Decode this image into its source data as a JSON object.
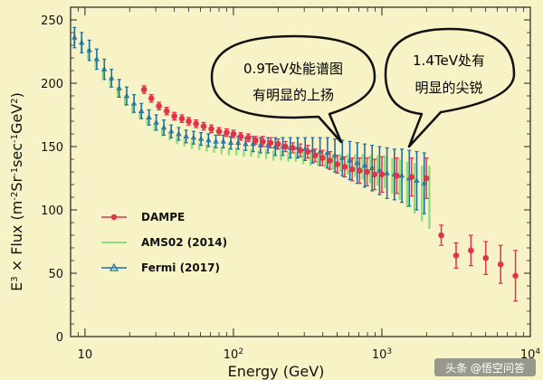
{
  "chart_data": {
    "type": "scatter",
    "xlabel": "Energy (GeV)",
    "ylabel": "E3 × Flux  (m-2Sr-1sec-1GeV2)",
    "ylabel_parts": {
      "prefix": "E",
      "sup1": "3",
      "mid": " × Flux  (m",
      "sup2": "-2",
      "mid2": "Sr",
      "sup3": "-1",
      "mid3": "sec",
      "sup4": "-1",
      "mid4": "GeV",
      "sup5": "2",
      "suffix": ")"
    },
    "xscale": "log",
    "xlim": [
      8,
      10000
    ],
    "ylim": [
      0,
      260
    ],
    "y_ticks": [
      0,
      50,
      100,
      150,
      200,
      250
    ],
    "x_ticks": [
      {
        "value": 10,
        "label": "10",
        "sup": ""
      },
      {
        "value": 100,
        "label": "10",
        "sup": "2"
      },
      {
        "value": 1000,
        "label": "10",
        "sup": "3"
      },
      {
        "value": 10000,
        "label": "10",
        "sup": "4"
      }
    ],
    "legend_position": "left",
    "series": [
      {
        "name": "DAMPE",
        "color": "#e0344a",
        "marker": "circle",
        "x": [
          25,
          28,
          31.5,
          35.5,
          40,
          45,
          50,
          56,
          63,
          71,
          80,
          90,
          100,
          112,
          126,
          141,
          158,
          178,
          200,
          224,
          251,
          282,
          316,
          355,
          398,
          447,
          501,
          562,
          631,
          708,
          794,
          891,
          1000,
          1259,
          1585,
          1995,
          2512,
          3162,
          3981,
          5012,
          6310,
          7943
        ],
        "y": [
          195,
          188,
          182,
          178,
          174,
          172,
          170,
          168,
          166,
          164,
          162,
          161,
          160,
          158,
          157,
          155,
          154,
          153,
          152,
          150,
          149,
          147,
          146,
          143,
          141,
          139,
          136,
          134,
          132,
          131,
          130,
          128,
          128,
          127,
          126,
          125,
          80,
          64,
          68,
          62,
          57,
          48
        ],
        "err": [
          3,
          3,
          3,
          3,
          3,
          3,
          3,
          3,
          3,
          3,
          3,
          3,
          3,
          3,
          3,
          3,
          4,
          4,
          4,
          4,
          4,
          5,
          5,
          5,
          6,
          7,
          7,
          8,
          9,
          10,
          11,
          12,
          14,
          14,
          15,
          16,
          8,
          10,
          12,
          13,
          15,
          20
        ]
      },
      {
        "name": "AMS02 (2014)",
        "color": "#8fe07d",
        "marker": "line",
        "x": [
          8.5,
          9.5,
          10.5,
          11.8,
          13.2,
          14.8,
          16.6,
          18.6,
          20.9,
          23.4,
          26.3,
          29.5,
          33.1,
          37.2,
          41.7,
          46.8,
          52.5,
          58.9,
          66.1,
          74.1,
          83.2,
          93.3,
          104.7,
          117.5,
          131.8,
          147.9,
          166,
          186.2,
          208.9,
          234.4,
          263,
          295.1,
          331.1,
          371.5,
          416.9,
          467.7,
          524.8,
          588.8,
          660.7,
          741.3,
          831.8,
          933.3,
          1047,
          1175,
          1318,
          1479,
          1660,
          1862,
          2089
        ],
        "y": [
          236,
          230,
          223,
          216,
          208,
          200,
          193,
          186,
          180,
          175,
          170,
          165,
          161,
          158,
          155,
          153,
          151,
          150,
          149,
          148,
          147,
          146,
          146,
          145,
          145,
          144,
          144,
          143,
          143,
          142,
          142,
          141,
          140,
          140,
          139,
          138,
          137,
          136,
          135,
          134,
          132,
          131,
          130,
          127,
          124,
          120,
          117,
          113,
          110
        ],
        "err": [
          5,
          5,
          4,
          4,
          4,
          4,
          4,
          4,
          4,
          3,
          3,
          3,
          3,
          3,
          3,
          3,
          3,
          3,
          3,
          3,
          3,
          3,
          3,
          3,
          3,
          3,
          4,
          4,
          4,
          4,
          4,
          5,
          5,
          5,
          6,
          6,
          7,
          8,
          9,
          10,
          11,
          12,
          13,
          14,
          16,
          18,
          20,
          22,
          25
        ]
      },
      {
        "name": "Fermi (2017)",
        "color": "#1d6fa3",
        "marker": "triangle",
        "x": [
          8.5,
          9.5,
          10.7,
          12,
          13.5,
          15.1,
          17,
          19.1,
          21.4,
          24,
          27,
          30.2,
          34,
          38.1,
          42.8,
          48,
          53.9,
          60.5,
          67.9,
          76.2,
          85.5,
          96,
          107.7,
          120.9,
          135.7,
          152.3,
          170.9,
          191.8,
          215.3,
          241.6,
          271.1,
          304.3,
          341.5,
          383.3,
          430.2,
          482.8,
          541.9,
          608.2,
          682.6,
          766,
          859.8,
          965,
          1083,
          1215,
          1364,
          1531,
          1718,
          1928
        ],
        "y": [
          236,
          232,
          226,
          219,
          211,
          204,
          196,
          190,
          184,
          178,
          173,
          169,
          165,
          162,
          160,
          158,
          157,
          156,
          155,
          154,
          154,
          153,
          153,
          152,
          152,
          151,
          151,
          150,
          150,
          149,
          149,
          148,
          147,
          146,
          145,
          143,
          141,
          139,
          137,
          135,
          133,
          131,
          129,
          128,
          127,
          125,
          123,
          121
        ],
        "err": [
          8,
          8,
          8,
          8,
          8,
          7,
          7,
          7,
          7,
          6,
          6,
          6,
          6,
          5,
          5,
          5,
          5,
          5,
          5,
          5,
          5,
          5,
          5,
          5,
          6,
          6,
          6,
          7,
          7,
          8,
          8,
          9,
          10,
          11,
          12,
          13,
          14,
          15,
          16,
          17,
          18,
          19,
          20,
          20,
          21,
          22,
          23,
          24
        ]
      }
    ],
    "annotations": [
      {
        "line1": "0.9TeV处能谱图",
        "line2": "有明显的上扬"
      },
      {
        "line1": "1.4TeV处有",
        "line2": "明显的尖锐"
      }
    ]
  },
  "watermark": {
    "text": "头条 @悟空问答"
  }
}
